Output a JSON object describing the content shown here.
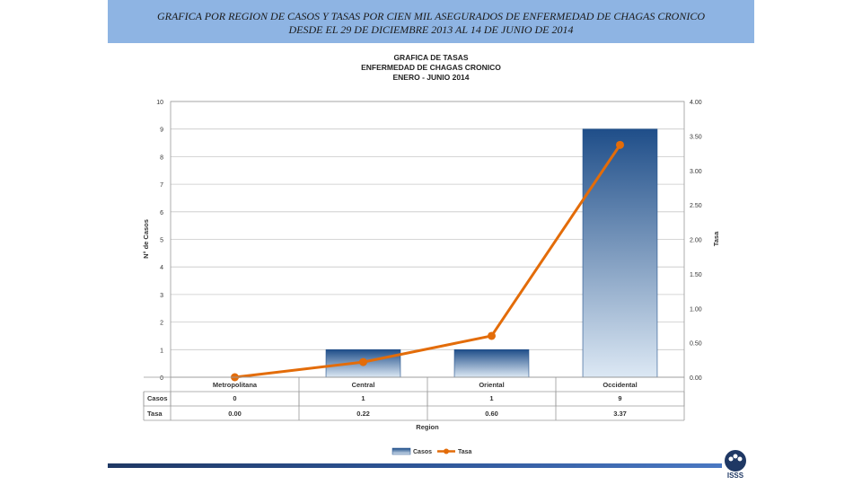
{
  "banner": {
    "line1": "GRAFICA POR REGION DE CASOS Y TASAS POR CIEN MIL ASEGURADOS DE ENFERMEDAD DE CHAGAS CRONICO",
    "line2": "DESDE EL 29 DE DICIEMBRE 2013 AL 14 DE JUNIO DE 2014"
  },
  "logo": {
    "text": "ISSS"
  },
  "chart_data": {
    "type": "bar",
    "title": [
      "GRAFICA DE TASAS",
      "ENFERMEDAD DE CHAGAS CRONICO",
      "ENERO - JUNIO 2014"
    ],
    "xlabel": "Region",
    "ylabel": "N° de Casos",
    "y2label": "Tasa",
    "categories": [
      "Metropolitana",
      "Central",
      "Oriental",
      "Occidental"
    ],
    "series": [
      {
        "name": "Casos",
        "type": "bar",
        "axis": "left",
        "values": [
          0,
          1,
          1,
          9
        ],
        "labels": [
          "0",
          "1",
          "1",
          "9"
        ],
        "color": "#1f4e89"
      },
      {
        "name": "Tasa",
        "type": "line",
        "axis": "right",
        "values": [
          0.0,
          0.22,
          0.6,
          3.37
        ],
        "labels": [
          "0.00",
          "0.22",
          "0.60",
          "3.37"
        ],
        "color": "#e36c09"
      }
    ],
    "ylim": [
      0,
      10
    ],
    "yticks": [
      "0",
      "1",
      "2",
      "3",
      "4",
      "5",
      "6",
      "7",
      "8",
      "9",
      "10"
    ],
    "y2lim": [
      0,
      4
    ],
    "y2ticks": [
      "0.00",
      "0.50",
      "1.00",
      "1.50",
      "2.00",
      "2.50",
      "3.00",
      "3.50",
      "4.00"
    ],
    "grid": true,
    "legend": "bottom",
    "data_table": true
  }
}
